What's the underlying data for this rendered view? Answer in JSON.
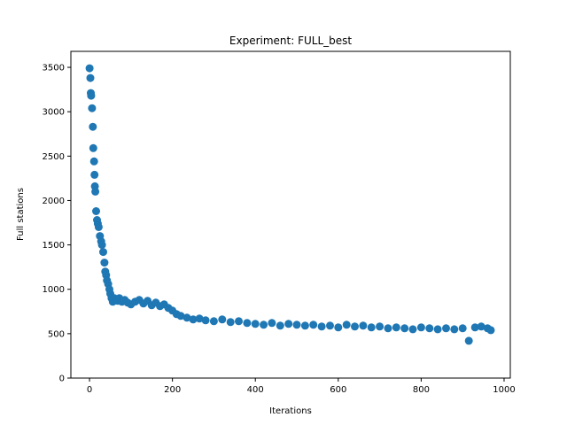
{
  "chart_data": {
    "type": "scatter",
    "title": "Experiment: FULL_best",
    "xlabel": "Iterations",
    "ylabel": "Full stations",
    "xlim": [
      -45,
      1015
    ],
    "ylim": [
      0,
      3680
    ],
    "xticks": [
      0,
      200,
      400,
      600,
      800,
      1000
    ],
    "yticks": [
      0,
      500,
      1000,
      1500,
      2000,
      2500,
      3000,
      3500
    ],
    "grid": false,
    "marker_color": "#1f77b4",
    "series": [
      {
        "x": [
          0,
          2,
          3,
          4,
          6,
          8,
          9,
          11,
          12,
          13,
          14,
          16,
          18,
          20,
          22,
          25,
          28,
          30,
          33,
          36,
          38,
          40,
          42,
          45,
          48,
          50,
          53,
          56,
          60,
          64,
          68,
          72,
          78,
          85,
          92,
          100,
          110,
          120,
          130,
          140,
          150,
          160,
          170,
          180,
          190,
          200,
          210,
          220,
          235,
          250,
          265,
          280,
          300,
          320,
          340,
          360,
          380,
          400,
          420,
          440,
          460,
          480,
          500,
          520,
          540,
          560,
          580,
          600,
          620,
          640,
          660,
          680,
          700,
          720,
          740,
          760,
          780,
          800,
          820,
          840,
          860,
          880,
          900,
          915,
          930,
          945,
          960,
          968
        ],
        "y": [
          3490,
          3380,
          3210,
          3180,
          3040,
          2830,
          2590,
          2440,
          2290,
          2160,
          2100,
          1880,
          1780,
          1740,
          1700,
          1600,
          1540,
          1500,
          1420,
          1300,
          1200,
          1160,
          1100,
          1060,
          1000,
          950,
          900,
          860,
          900,
          880,
          870,
          900,
          860,
          880,
          850,
          830,
          860,
          880,
          840,
          870,
          820,
          850,
          810,
          830,
          790,
          760,
          720,
          700,
          680,
          660,
          670,
          650,
          640,
          660,
          630,
          640,
          620,
          610,
          600,
          620,
          590,
          610,
          600,
          590,
          600,
          580,
          590,
          570,
          600,
          580,
          590,
          570,
          580,
          560,
          570,
          560,
          550,
          570,
          560,
          550,
          560,
          550,
          560,
          420,
          570,
          580,
          560,
          540
        ]
      }
    ]
  }
}
